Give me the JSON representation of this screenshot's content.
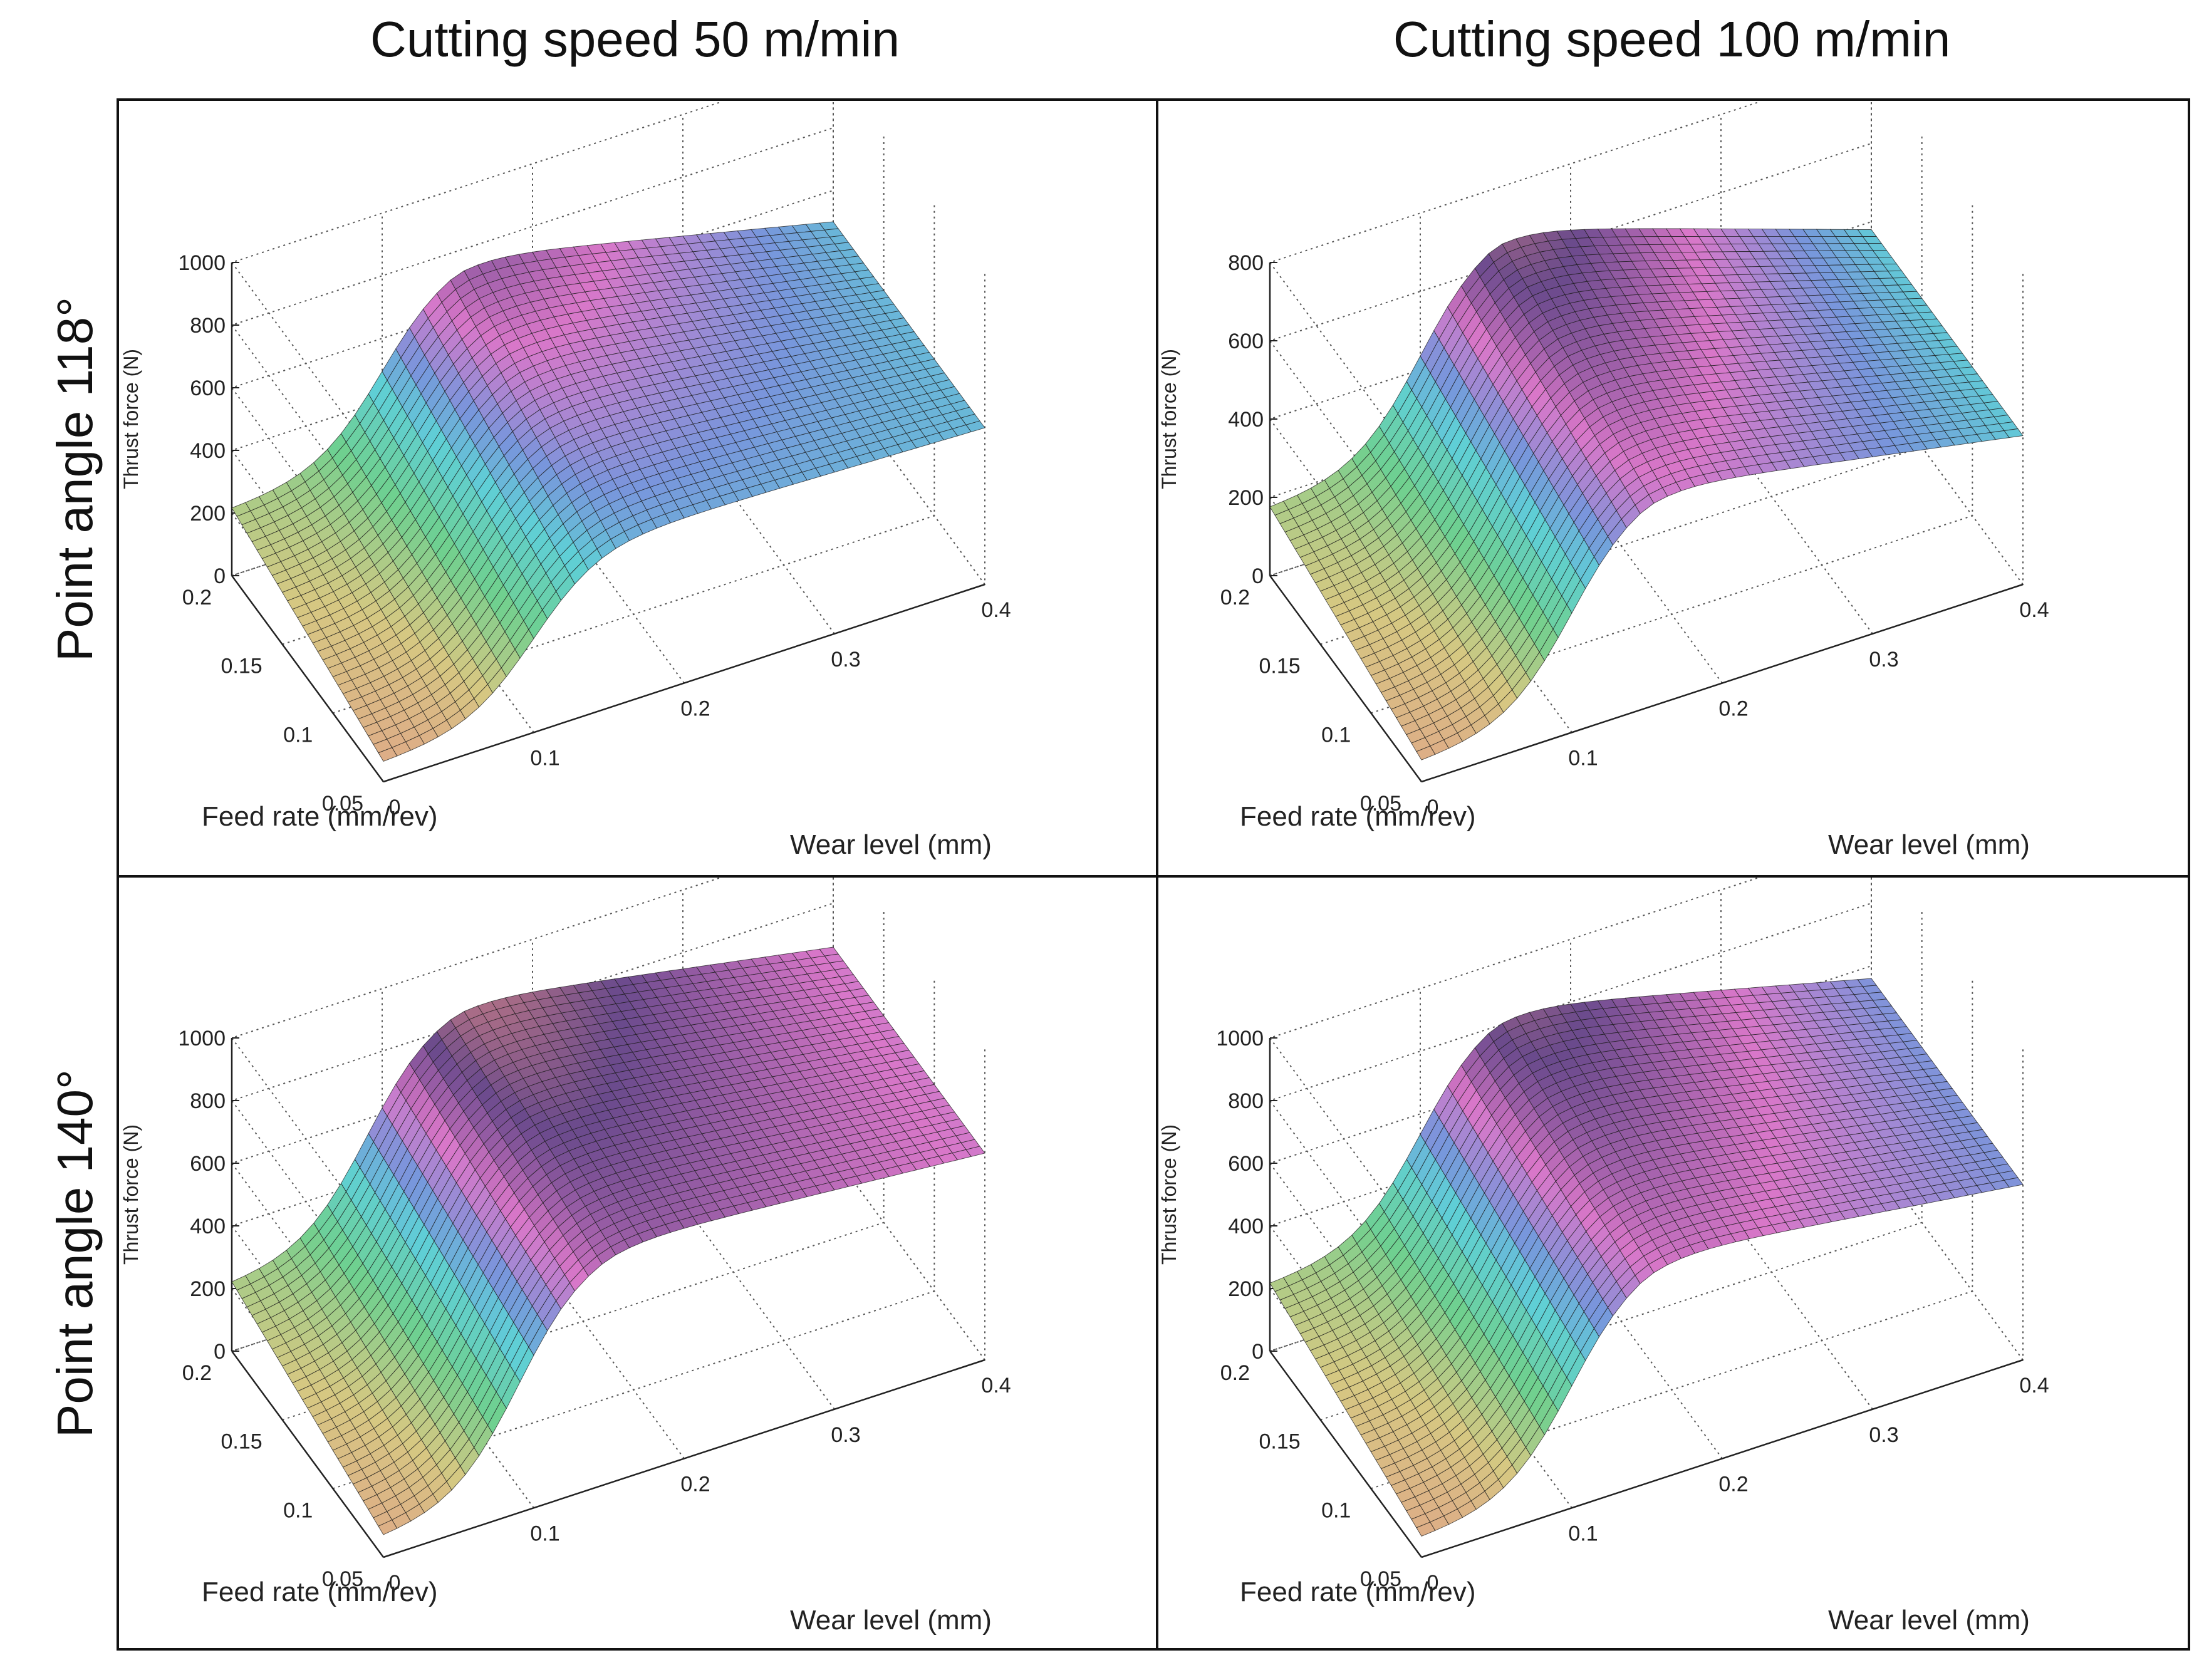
{
  "column_titles": [
    "Cutting speed 50 m/min",
    "Cutting speed 100 m/min"
  ],
  "row_titles": [
    "Point angle  118°",
    "Point angle  140°"
  ],
  "colors": {
    "frame": "#111111",
    "grid": "#555555",
    "surface_low": "#e39a8a",
    "surface_mid_green": "#6fd08f",
    "surface_cyan": "#5fcfd6",
    "surface_magenta": "#d977c9",
    "surface_purple": "#6a4a8c"
  },
  "chart_data": [
    {
      "type": "surface3d",
      "panel": "top-left",
      "xlabel": "Wear level (mm)",
      "ylabel": "Feed rate (mm/rev)",
      "zlabel": "Thrust force (N)",
      "xlim": [
        0,
        0.4
      ],
      "ylim": [
        0.05,
        0.2
      ],
      "zlim": [
        0,
        1000
      ],
      "xticks": [
        "0",
        "0.1",
        "0.2",
        "0.3",
        "0.4"
      ],
      "yticks": [
        "0.05",
        "0.1",
        "0.15",
        "0.2"
      ],
      "zticks": [
        "0",
        "200",
        "400",
        "600",
        "800",
        "1000"
      ],
      "surface": {
        "base_at_zero_wear": 60,
        "base_feed_slope": 150,
        "rise_center_wear": 0.1,
        "rise_steepness": 45,
        "plateau_at_max_feed": 780,
        "plateau_at_min_feed": 540,
        "end_at_max_wear": 500
      }
    },
    {
      "type": "surface3d",
      "panel": "top-right",
      "xlabel": "Wear level (mm)",
      "ylabel": "Feed rate (mm/rev)",
      "zlabel": "Thrust force (N)",
      "xlim": [
        0,
        0.4
      ],
      "ylim": [
        0.05,
        0.2
      ],
      "zlim": [
        0,
        800
      ],
      "xticks": [
        "0",
        "0.1",
        "0.2",
        "0.3",
        "0.4"
      ],
      "yticks": [
        "0.05",
        "0.1",
        "0.15",
        "0.2"
      ],
      "zticks": [
        "0",
        "200",
        "400",
        "600",
        "800"
      ],
      "surface": {
        "base_at_zero_wear": 50,
        "base_feed_slope": 120,
        "rise_center_wear": 0.1,
        "rise_steepness": 45,
        "plateau_at_max_feed": 700,
        "plateau_at_min_feed": 560,
        "end_at_max_wear": 380
      }
    },
    {
      "type": "surface3d",
      "panel": "bottom-left",
      "xlabel": "Wear level (mm)",
      "ylabel": "Feed rate (mm/rev)",
      "zlabel": "Thrust force (N)",
      "xlim": [
        0,
        0.4
      ],
      "ylim": [
        0.05,
        0.2
      ],
      "zlim": [
        0,
        1000
      ],
      "xticks": [
        "0",
        "0.1",
        "0.2",
        "0.3",
        "0.4"
      ],
      "yticks": [
        "0.05",
        "0.1",
        "0.15",
        "0.2"
      ],
      "zticks": [
        "0",
        "200",
        "400",
        "600",
        "800",
        "1000"
      ],
      "surface": {
        "base_at_zero_wear": 60,
        "base_feed_slope": 150,
        "rise_center_wear": 0.09,
        "rise_steepness": 45,
        "plateau_at_max_feed": 880,
        "plateau_at_min_feed": 760,
        "end_at_max_wear": 660
      }
    },
    {
      "type": "surface3d",
      "panel": "bottom-right",
      "xlabel": "Wear level (mm)",
      "ylabel": "Feed rate (mm/rev)",
      "zlabel": "Thrust force (N)",
      "xlim": [
        0,
        0.4
      ],
      "ylim": [
        0.05,
        0.2
      ],
      "zlim": [
        0,
        1000
      ],
      "xticks": [
        "0",
        "0.1",
        "0.2",
        "0.3",
        "0.4"
      ],
      "yticks": [
        "0.05",
        "0.1",
        "0.15",
        "0.2"
      ],
      "zticks": [
        "0",
        "200",
        "400",
        "600",
        "800",
        "1000"
      ],
      "surface": {
        "base_at_zero_wear": 60,
        "base_feed_slope": 150,
        "rise_center_wear": 0.1,
        "rise_steepness": 45,
        "plateau_at_max_feed": 860,
        "plateau_at_min_feed": 720,
        "end_at_max_wear": 560
      }
    }
  ]
}
